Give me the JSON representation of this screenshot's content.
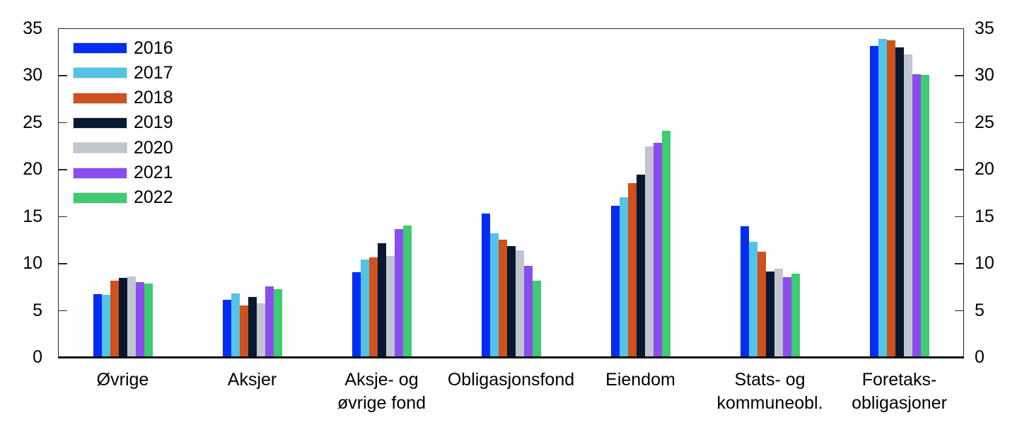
{
  "chart_data": {
    "type": "bar",
    "title": "",
    "xlabel": "",
    "ylabel": "",
    "ylim": [
      0,
      35
    ],
    "yticks": [
      0,
      5,
      10,
      15,
      20,
      25,
      30,
      35
    ],
    "grid": false,
    "legend_position": "top-left",
    "mirrored_y_axis": true,
    "categories": [
      [
        "Øvrige"
      ],
      [
        "Aksjer"
      ],
      [
        "Aksje- og",
        "øvrige fond"
      ],
      [
        "Obligasjonsfond"
      ],
      [
        "Eiendom"
      ],
      [
        "Stats- og",
        "kommuneobl."
      ],
      [
        "Foretaks-",
        "obligasjoner"
      ]
    ],
    "series": [
      {
        "name": "2016",
        "color": "#022df2",
        "values": [
          6.7,
          6.1,
          9.0,
          15.3,
          16.1,
          13.9,
          33.1
        ]
      },
      {
        "name": "2017",
        "color": "#53c3e6",
        "values": [
          6.6,
          6.8,
          10.4,
          13.2,
          17.0,
          12.3,
          33.9
        ]
      },
      {
        "name": "2018",
        "color": "#cf511d",
        "values": [
          8.1,
          5.5,
          10.6,
          12.5,
          18.5,
          11.2,
          33.7
        ]
      },
      {
        "name": "2019",
        "color": "#081831",
        "values": [
          8.4,
          6.4,
          12.1,
          11.8,
          19.4,
          9.1,
          33.0
        ]
      },
      {
        "name": "2020",
        "color": "#c1c5cf",
        "values": [
          8.6,
          5.7,
          10.8,
          11.4,
          22.4,
          9.4,
          32.2
        ]
      },
      {
        "name": "2021",
        "color": "#8b4df0",
        "values": [
          8.0,
          7.5,
          13.6,
          9.7,
          22.8,
          8.5,
          30.1
        ]
      },
      {
        "name": "2022",
        "color": "#3ecb72",
        "values": [
          7.8,
          7.2,
          14.0,
          8.1,
          24.1,
          8.9,
          30.0
        ]
      }
    ],
    "colors": {
      "frame": "#262626",
      "baseline": "#111111",
      "background": "#ffffff",
      "text": "#000000"
    }
  },
  "layout_note_values_visible_only": true
}
